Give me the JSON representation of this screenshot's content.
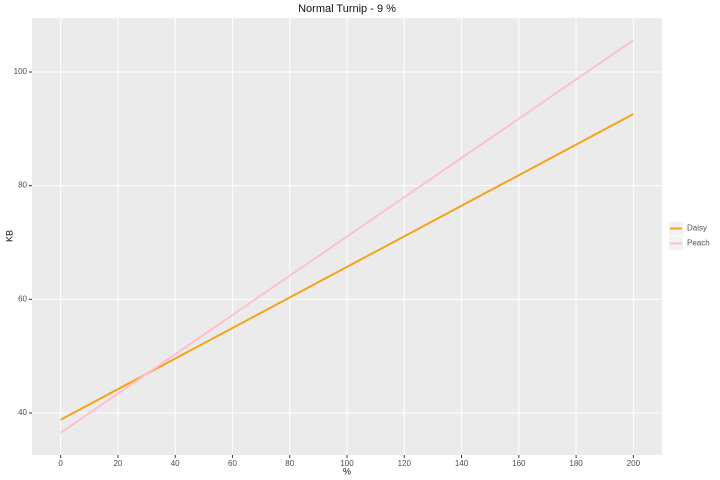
{
  "chart_data": {
    "type": "line",
    "title": "Normal Turnip -  9 %",
    "x_label": "%",
    "y_label": "KB",
    "x": [
      0,
      200
    ],
    "series": [
      {
        "name": "Daisy",
        "color": "#f5a31a",
        "values": [
          38.8,
          92.6
        ]
      },
      {
        "name": "Peach",
        "color": "#ffc0cb",
        "values": [
          36.5,
          105.6
        ]
      }
    ],
    "xlim": [
      -10,
      210
    ],
    "xticks": [
      0,
      20,
      40,
      60,
      80,
      100,
      120,
      140,
      160,
      180,
      200
    ],
    "ylim": [
      32.6,
      109.5
    ],
    "yticks": [
      40,
      60,
      80,
      100
    ],
    "grid": true,
    "legend": "right"
  }
}
